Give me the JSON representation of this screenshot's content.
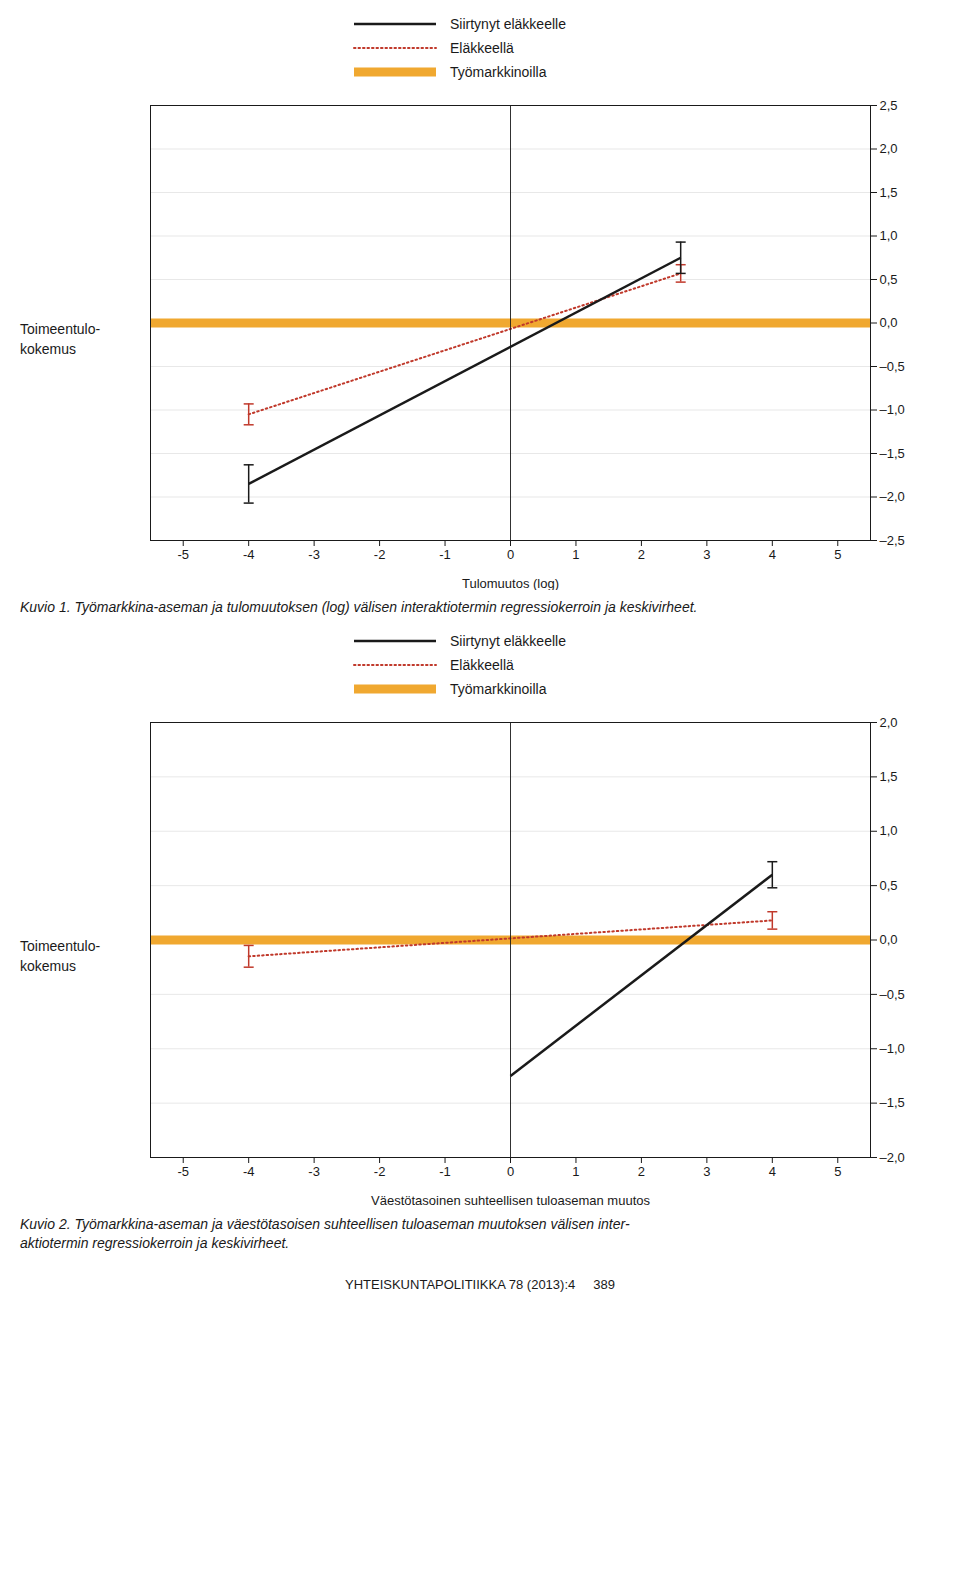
{
  "chart_data": [
    {
      "type": "line",
      "xlabel": "Tulomuutos (log)",
      "ylabel": "Toimeentulo-\nkokemus",
      "caption": "Kuvio 1. Työmarkkina-aseman ja tulomuutoksen (log) välisen interaktiotermin regressiokerroin ja keskivirheet.",
      "xlim": [
        -5.5,
        5.5
      ],
      "ylim": [
        -2.5,
        2.5
      ],
      "xticks": [
        -5,
        -4,
        -3,
        -2,
        -1,
        0,
        1,
        2,
        3,
        4,
        5
      ],
      "yticks": [
        {
          "value": -2.5,
          "label": "–2,5"
        },
        {
          "value": -2.0,
          "label": "–2,0"
        },
        {
          "value": -1.5,
          "label": "–1,5"
        },
        {
          "value": -1.0,
          "label": "–1,0"
        },
        {
          "value": -0.5,
          "label": "–0,5"
        },
        {
          "value": 0.0,
          "label": "0,0"
        },
        {
          "value": 0.5,
          "label": "0,5"
        },
        {
          "value": 1.0,
          "label": "1,0"
        },
        {
          "value": 1.5,
          "label": "1,5"
        },
        {
          "value": 2.0,
          "label": "2,0"
        },
        {
          "value": 2.5,
          "label": "2,5"
        }
      ],
      "grid": true,
      "legend": "top",
      "series": [
        {
          "name": "Siirtynyt eläkkeelle",
          "color": "#1a1a1a",
          "line_style": "solid",
          "x": [
            -4.0,
            2.6
          ],
          "values": [
            -1.85,
            0.75
          ],
          "error": [
            0.22,
            0.18
          ]
        },
        {
          "name": "Eläkkeellä",
          "color": "#c0392b",
          "line_style": "dotted",
          "x": [
            -4.0,
            2.6
          ],
          "values": [
            -1.05,
            0.57
          ],
          "error": [
            0.12,
            0.1
          ]
        },
        {
          "name": "Työmarkkinoilla",
          "color": "#f0a830",
          "line_style": "solid",
          "x": [
            -5.5,
            5.5
          ],
          "values": [
            0.0,
            0.0
          ]
        }
      ]
    },
    {
      "type": "line",
      "xlabel": "Väestötasoinen suhteellisen tuloaseman muutos",
      "ylabel": "Toimeentulo-\nkokemus",
      "caption": "Kuvio 2. Työmarkkina-aseman ja väestötasoisen suhteellisen tuloaseman muutoksen välisen inter-\naktiotermin regressiokerroin ja keskivirheet.",
      "annotations": [
        "YHTEISKUNTAPOLITIIKKA 78 (2013):4     389"
      ],
      "xlim": [
        -5.5,
        5.5
      ],
      "ylim": [
        -2.0,
        2.0
      ],
      "xticks": [
        -5,
        -4,
        -3,
        -2,
        -1,
        0,
        1,
        2,
        3,
        4,
        5
      ],
      "yticks": [
        {
          "value": -2.0,
          "label": "–2,0"
        },
        {
          "value": -1.5,
          "label": "–1,5"
        },
        {
          "value": -1.0,
          "label": "–1,0"
        },
        {
          "value": -0.5,
          "label": "–0,5"
        },
        {
          "value": 0.0,
          "label": "0,0"
        },
        {
          "value": 0.5,
          "label": "0,5"
        },
        {
          "value": 1.0,
          "label": "1,0"
        },
        {
          "value": 1.5,
          "label": "1,5"
        },
        {
          "value": 2.0,
          "label": "2,0"
        }
      ],
      "grid": true,
      "legend": "top",
      "series": [
        {
          "name": "Siirtynyt eläkkeelle",
          "color": "#1a1a1a",
          "line_style": "solid",
          "x": [
            0.0,
            4.0
          ],
          "values": [
            -1.25,
            0.6
          ],
          "error": [
            null,
            0.12
          ]
        },
        {
          "name": "Eläkkeellä",
          "color": "#c0392b",
          "line_style": "dotted",
          "x": [
            -4.0,
            4.0
          ],
          "values": [
            -0.15,
            0.18
          ],
          "error": [
            0.1,
            0.08
          ]
        },
        {
          "name": "Työmarkkinoilla",
          "color": "#f0a830",
          "line_style": "solid",
          "x": [
            -5.5,
            5.5
          ],
          "values": [
            0.0,
            0.0
          ]
        }
      ]
    }
  ]
}
